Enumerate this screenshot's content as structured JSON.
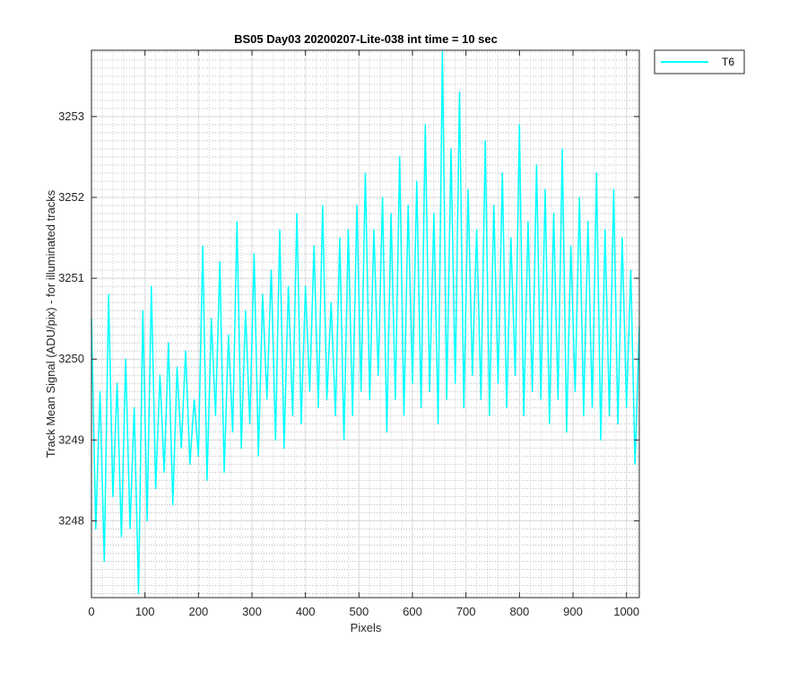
{
  "chart_data": {
    "type": "line",
    "title": "BS05 Day03 20200207-Lite-038 int time = 10 sec",
    "xlabel": "Pixels",
    "ylabel": "Track Mean Signal (ADU/pix) - for illuminated tracks",
    "xlim": [
      0,
      1024
    ],
    "ylim": [
      3247.05,
      3253.82
    ],
    "xticks": [
      0,
      100,
      200,
      300,
      400,
      500,
      600,
      700,
      800,
      900,
      1000
    ],
    "yticks": [
      3248,
      3249,
      3250,
      3251,
      3252,
      3253
    ],
    "grid": true,
    "minor_grid": true,
    "legend_position": "outside-top-right",
    "series": [
      {
        "name": "T6",
        "color": "#00FFFF",
        "description_sampled": true,
        "x": [
          0,
          8,
          16,
          24,
          32,
          40,
          48,
          56,
          64,
          72,
          80,
          88,
          96,
          104,
          112,
          120,
          128,
          136,
          144,
          152,
          160,
          168,
          176,
          184,
          192,
          200,
          208,
          216,
          224,
          232,
          240,
          248,
          256,
          264,
          272,
          280,
          288,
          296,
          304,
          312,
          320,
          328,
          336,
          344,
          352,
          360,
          368,
          376,
          384,
          392,
          400,
          408,
          416,
          424,
          432,
          440,
          448,
          456,
          464,
          472,
          480,
          488,
          496,
          504,
          512,
          520,
          528,
          536,
          544,
          552,
          560,
          568,
          576,
          584,
          592,
          600,
          608,
          616,
          624,
          632,
          640,
          648,
          656,
          664,
          672,
          680,
          688,
          696,
          704,
          712,
          720,
          728,
          736,
          744,
          752,
          760,
          768,
          776,
          784,
          792,
          800,
          808,
          816,
          824,
          832,
          840,
          848,
          856,
          864,
          872,
          880,
          888,
          896,
          904,
          912,
          920,
          928,
          936,
          944,
          952,
          960,
          968,
          976,
          984,
          992,
          1000,
          1008,
          1016,
          1024
        ],
        "y": [
          3250.5,
          3247.9,
          3249.6,
          3247.5,
          3250.8,
          3248.3,
          3249.7,
          3247.8,
          3250.0,
          3247.9,
          3249.4,
          3247.1,
          3250.6,
          3248.0,
          3250.9,
          3248.4,
          3249.8,
          3248.6,
          3250.2,
          3248.2,
          3249.9,
          3248.9,
          3250.1,
          3248.7,
          3249.5,
          3248.8,
          3251.4,
          3248.5,
          3250.5,
          3249.3,
          3251.2,
          3248.6,
          3250.3,
          3249.1,
          3251.7,
          3248.9,
          3250.6,
          3249.2,
          3251.3,
          3248.8,
          3250.8,
          3249.5,
          3251.1,
          3249.0,
          3251.6,
          3248.9,
          3250.9,
          3249.3,
          3251.8,
          3249.2,
          3250.9,
          3249.6,
          3251.4,
          3249.4,
          3251.9,
          3249.5,
          3250.7,
          3249.3,
          3251.5,
          3249.0,
          3251.6,
          3249.3,
          3251.9,
          3249.6,
          3252.3,
          3249.5,
          3251.6,
          3249.8,
          3252.0,
          3249.1,
          3251.8,
          3249.5,
          3252.5,
          3249.3,
          3251.9,
          3249.7,
          3252.2,
          3249.4,
          3252.9,
          3249.6,
          3251.8,
          3249.2,
          3253.8,
          3249.5,
          3252.6,
          3249.7,
          3253.3,
          3249.4,
          3252.1,
          3249.8,
          3251.6,
          3249.5,
          3252.7,
          3249.3,
          3251.9,
          3249.7,
          3252.3,
          3249.4,
          3251.5,
          3249.8,
          3252.9,
          3249.3,
          3251.7,
          3249.6,
          3252.4,
          3249.5,
          3252.1,
          3249.2,
          3251.8,
          3249.5,
          3252.6,
          3249.1,
          3251.4,
          3249.6,
          3252.0,
          3249.3,
          3251.7,
          3249.4,
          3252.3,
          3249.0,
          3251.6,
          3249.3,
          3252.1,
          3249.2,
          3251.5,
          3249.4,
          3251.1,
          3248.7,
          3250.4
        ]
      }
    ]
  }
}
